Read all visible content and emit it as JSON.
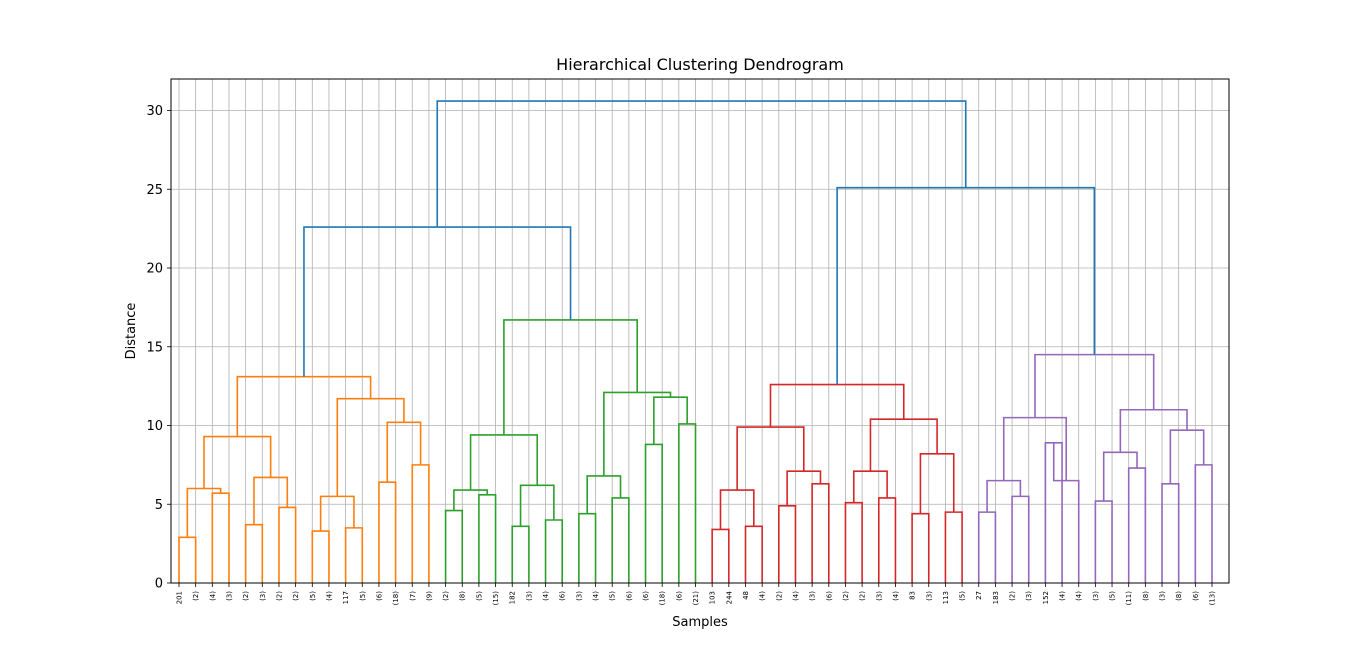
{
  "chart_data": {
    "type": "dendrogram",
    "title": "Hierarchical Clustering Dendrogram",
    "xlabel": "Samples",
    "ylabel": "Distance",
    "ylim": [
      0,
      32
    ],
    "yticks": [
      0,
      5,
      10,
      15,
      20,
      25,
      30
    ],
    "grid": true,
    "leaf_labels": [
      "201",
      "(2)",
      "(4)",
      "(3)",
      "(2)",
      "(3)",
      "(2)",
      "(2)",
      "(5)",
      "(4)",
      "117",
      "(5)",
      "(6)",
      "(18)",
      "(7)",
      "(9)",
      "(2)",
      "(8)",
      "(5)",
      "(15)",
      "182",
      "(3)",
      "(4)",
      "(6)",
      "(3)",
      "(4)",
      "(5)",
      "(6)",
      "(6)",
      "(18)",
      "(6)",
      "(21)",
      "103",
      "244",
      "48",
      "(4)",
      "(2)",
      "(4)",
      "(3)",
      "(6)",
      "(2)",
      "(2)",
      "(3)",
      "(4)",
      "83",
      "(3)",
      "113",
      "(5)",
      "27",
      "183",
      "(2)",
      "(3)",
      "152",
      "(4)",
      "(4)",
      "(3)",
      "(5)",
      "(11)",
      "(8)",
      "(3)",
      "(8)",
      "(6)",
      "(13)"
    ],
    "cluster_colors": {
      "orange": "#ff7f0e",
      "green": "#2ca02c",
      "red": "#d62728",
      "purple": "#9467bd",
      "above_threshold": "#1f77b4"
    },
    "merges": [
      {
        "a": 0,
        "b": 1,
        "h": 2.9,
        "c": "orange"
      },
      {
        "a": 2,
        "b": 3,
        "h": 5.7,
        "c": "orange"
      },
      {
        "a": "m0",
        "b": "m1",
        "h": 6.0,
        "c": "orange"
      },
      {
        "a": 4,
        "b": 5,
        "h": 3.7,
        "c": "orange"
      },
      {
        "a": 6,
        "b": 7,
        "h": 4.8,
        "c": "orange"
      },
      {
        "a": "m3",
        "b": "m4",
        "h": 6.7,
        "c": "orange"
      },
      {
        "a": "m2",
        "b": "m5",
        "h": 9.3,
        "c": "orange"
      },
      {
        "a": 8,
        "b": 9,
        "h": 3.3,
        "c": "orange"
      },
      {
        "a": 10,
        "b": 11,
        "h": 3.5,
        "c": "orange"
      },
      {
        "a": "m7",
        "b": "m8",
        "h": 5.5,
        "c": "orange"
      },
      {
        "a": 12,
        "b": 13,
        "h": 6.4,
        "c": "orange"
      },
      {
        "a": 14,
        "b": 15,
        "h": 7.5,
        "c": "orange"
      },
      {
        "a": "m10",
        "b": "m11",
        "h": 10.2,
        "c": "orange"
      },
      {
        "a": "m9",
        "b": "m12",
        "h": 11.7,
        "c": "orange"
      },
      {
        "a": "m6",
        "b": "m13",
        "h": 13.1,
        "c": "orange"
      },
      {
        "a": 16,
        "b": 17,
        "h": 4.6,
        "c": "green"
      },
      {
        "a": 18,
        "b": 19,
        "h": 5.6,
        "c": "green"
      },
      {
        "a": "m15",
        "b": "m16",
        "h": 5.9,
        "c": "green"
      },
      {
        "a": 20,
        "b": 21,
        "h": 3.6,
        "c": "green"
      },
      {
        "a": 22,
        "b": 23,
        "h": 4.0,
        "c": "green"
      },
      {
        "a": "m18",
        "b": "m19",
        "h": 6.2,
        "c": "green"
      },
      {
        "a": "m17",
        "b": "m20",
        "h": 9.4,
        "c": "green"
      },
      {
        "a": 24,
        "b": 25,
        "h": 4.4,
        "c": "green"
      },
      {
        "a": 26,
        "b": 27,
        "h": 5.4,
        "c": "green"
      },
      {
        "a": "m22",
        "b": "m23",
        "h": 6.8,
        "c": "green"
      },
      {
        "a": 28,
        "b": 29,
        "h": 8.8,
        "c": "green"
      },
      {
        "a": 30,
        "b": 31,
        "h": 10.1,
        "c": "green"
      },
      {
        "a": "m25",
        "b": "m26",
        "h": 11.8,
        "c": "green"
      },
      {
        "a": "m24",
        "b": "m27",
        "h": 12.1,
        "c": "green"
      },
      {
        "a": "m21",
        "b": "m28",
        "h": 16.7,
        "c": "green"
      },
      {
        "a": 32,
        "b": 33,
        "h": 3.4,
        "c": "red"
      },
      {
        "a": 34,
        "b": 35,
        "h": 3.6,
        "c": "red"
      },
      {
        "a": "m30",
        "b": "m31",
        "h": 5.9,
        "c": "red"
      },
      {
        "a": 36,
        "b": 37,
        "h": 4.9,
        "c": "red"
      },
      {
        "a": 38,
        "b": 39,
        "h": 6.3,
        "c": "red"
      },
      {
        "a": "m33",
        "b": "m34",
        "h": 7.1,
        "c": "red"
      },
      {
        "a": "m32",
        "b": "m35",
        "h": 9.9,
        "c": "red"
      },
      {
        "a": 40,
        "b": 41,
        "h": 5.1,
        "c": "red"
      },
      {
        "a": 42,
        "b": 43,
        "h": 5.4,
        "c": "red"
      },
      {
        "a": "m37",
        "b": "m38",
        "h": 7.1,
        "c": "red"
      },
      {
        "a": 44,
        "b": 45,
        "h": 4.4,
        "c": "red"
      },
      {
        "a": 46,
        "b": 47,
        "h": 4.5,
        "c": "red"
      },
      {
        "a": "m40",
        "b": "m41",
        "h": 8.2,
        "c": "red"
      },
      {
        "a": "m39",
        "b": "m42",
        "h": 10.4,
        "c": "red"
      },
      {
        "a": "m36",
        "b": "m43",
        "h": 12.6,
        "c": "red"
      },
      {
        "a": 48,
        "b": 49,
        "h": 4.5,
        "c": "purple"
      },
      {
        "a": 50,
        "b": 51,
        "h": 5.5,
        "c": "purple"
      },
      {
        "a": "m45",
        "b": "m46",
        "h": 6.5,
        "c": "purple"
      },
      {
        "a": 52,
        "b": 53,
        "h": 8.9,
        "c": "purple"
      },
      {
        "a": "m48",
        "b": 54,
        "h": 6.5,
        "c": "purple",
        "fix": true
      },
      {
        "a": "m47",
        "b": "m49",
        "h": 10.5,
        "c": "purple"
      },
      {
        "a": 55,
        "b": 56,
        "h": 5.2,
        "c": "purple"
      },
      {
        "a": 57,
        "b": 58,
        "h": 7.3,
        "c": "purple"
      },
      {
        "a": "m51",
        "b": "m52",
        "h": 8.3,
        "c": "purple"
      },
      {
        "a": 59,
        "b": 60,
        "h": 6.3,
        "c": "purple"
      },
      {
        "a": 61,
        "b": 62,
        "h": 7.5,
        "c": "purple"
      },
      {
        "a": "m54",
        "b": "m55",
        "h": 9.7,
        "c": "purple"
      },
      {
        "a": "m53",
        "b": "m56",
        "h": 11.0,
        "c": "purple"
      },
      {
        "a": "m50",
        "b": "m57",
        "h": 14.5,
        "c": "purple"
      },
      {
        "a": "m14",
        "b": "m29",
        "h": 22.6,
        "c": "above_threshold"
      },
      {
        "a": "m44",
        "b": "m58",
        "h": 25.1,
        "c": "above_threshold"
      },
      {
        "a": "m59",
        "b": "m60",
        "h": 30.6,
        "c": "above_threshold"
      }
    ]
  }
}
